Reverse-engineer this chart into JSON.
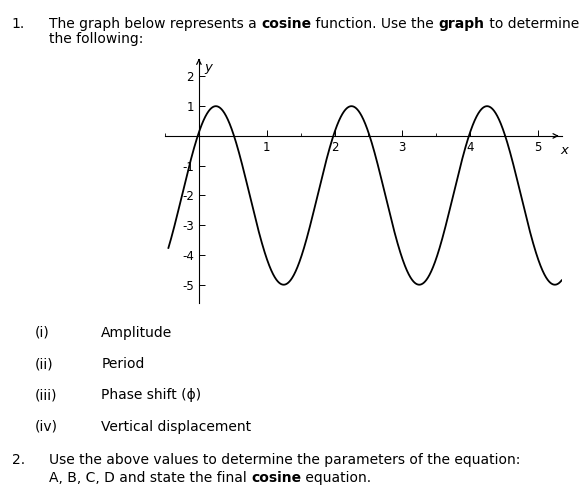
{
  "cosine_A": 3,
  "cosine_B": 3.14159265,
  "cosine_phase": 0.25,
  "cosine_D": -2,
  "x_min": -0.45,
  "x_max": 5.35,
  "y_min": -5.6,
  "y_max": 2.6,
  "x_ticks": [
    1,
    2,
    3,
    4,
    5
  ],
  "y_ticks": [
    -5,
    -4,
    -3,
    -2,
    -1,
    1,
    2
  ],
  "line_color": "#000000",
  "font_size": 10,
  "items": [
    {
      "label": "(i)",
      "text": "Amplitude"
    },
    {
      "label": "(ii)",
      "text": "Period"
    },
    {
      "label": "(iii)",
      "text": "Phase shift (ϕ)"
    },
    {
      "label": "(iv)",
      "text": "Vertical displacement"
    }
  ]
}
